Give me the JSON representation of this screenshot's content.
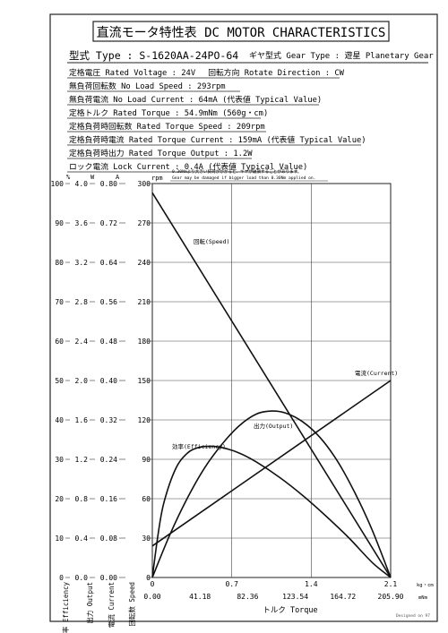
{
  "header": {
    "title": "直流モータ特性表 DC MOTOR CHARACTERISTICS",
    "model_line": "型式 Type : S-1620AA-24PO-64",
    "gear_line": "ギヤ型式 Gear Type : 遊星 Planetary Gear"
  },
  "specs": [
    "定格電圧 Rated Voltage : 24V　 回転方向 Rotate Direction : CW",
    "無負荷回転数 No Load Speed : 293rpm",
    "無負荷電流 No Load Current : 64mA (代表値 Typical Value)",
    "定格トルク Rated Torque : 54.9mNm (560g・cm)",
    "定格負荷時回転数 Rated Torque Speed : 209rpm",
    "定格負荷時電流 Rated Torque Current : 159mA (代表値 Typical Value)",
    "定格負荷時出力 Rated Torque Output : 1.2W",
    "ロック電流 Lock Current : 0.4A (代表値 Typical Value)"
  ],
  "warnings": [
    "0.30Nmより大きい負荷がかかると、ギヤが破損することがあります。",
    "Gear may be damaged if bigger load than 0.30Nm applied on."
  ],
  "footer": {
    "designed_by": "Designed on 97"
  },
  "chart_data": {
    "type": "line",
    "xlabel": "トルク Torque",
    "x_units": [
      "kg・cm",
      "mNm"
    ],
    "x_ticks_kgcm": [
      "0",
      "0.7",
      "1.4",
      "2.1"
    ],
    "x_ticks_mnm": [
      "0.00",
      "41.18",
      "82.36",
      "123.54",
      "164.72",
      "205.90"
    ],
    "xlim_mnm": [
      0,
      205.9
    ],
    "axes": [
      {
        "key": "eff",
        "unit": "%",
        "label": "効率 Efficiency",
        "ticks": [
          "0",
          "10",
          "20",
          "30",
          "40",
          "50",
          "60",
          "70",
          "80",
          "90",
          "100"
        ]
      },
      {
        "key": "out",
        "unit": "W",
        "label": "出力 Output",
        "ticks": [
          "0.0",
          "0.4",
          "0.8",
          "1.2",
          "1.6",
          "2.0",
          "2.4",
          "2.8",
          "3.2",
          "3.6",
          "4.0"
        ]
      },
      {
        "key": "cur",
        "unit": "A",
        "label": "電流 Current",
        "ticks": [
          "0.00",
          "0.08",
          "0.16",
          "0.24",
          "0.32",
          "0.40",
          "0.48",
          "0.56",
          "0.64",
          "0.72",
          "0.80"
        ]
      },
      {
        "key": "spd",
        "unit": "rpm",
        "label": "回転数 Speed",
        "ticks": [
          "0",
          "30",
          "60",
          "90",
          "120",
          "150",
          "180",
          "210",
          "240",
          "270",
          "300"
        ]
      }
    ],
    "series": [
      {
        "name": "回転(Speed)",
        "axis": "spd",
        "x": [
          0,
          205.9
        ],
        "y": [
          293,
          0
        ]
      },
      {
        "name": "電流(Current)",
        "axis": "cur",
        "x": [
          0,
          205.9
        ],
        "y": [
          0.064,
          0.4
        ]
      },
      {
        "name": "出力(Output)",
        "axis": "out",
        "x": [
          0,
          15,
          30,
          45,
          60,
          75,
          90,
          102.9,
          115,
          130,
          145,
          160,
          175,
          190,
          205.9
        ],
        "y": [
          0,
          0.43,
          0.8,
          1.11,
          1.35,
          1.54,
          1.66,
          1.69,
          1.67,
          1.58,
          1.42,
          1.18,
          0.86,
          0.48,
          0
        ]
      },
      {
        "name": "効率(Efficiency)",
        "axis": "eff",
        "x": [
          0,
          5,
          10,
          20,
          30,
          40,
          50,
          60,
          75,
          90,
          110,
          130,
          150,
          170,
          190,
          205.9
        ],
        "y": [
          0,
          11,
          19,
          27.5,
          31.5,
          33,
          33.3,
          33,
          31.6,
          29.3,
          25.4,
          20.8,
          15.6,
          10,
          3.8,
          0
        ]
      }
    ]
  }
}
